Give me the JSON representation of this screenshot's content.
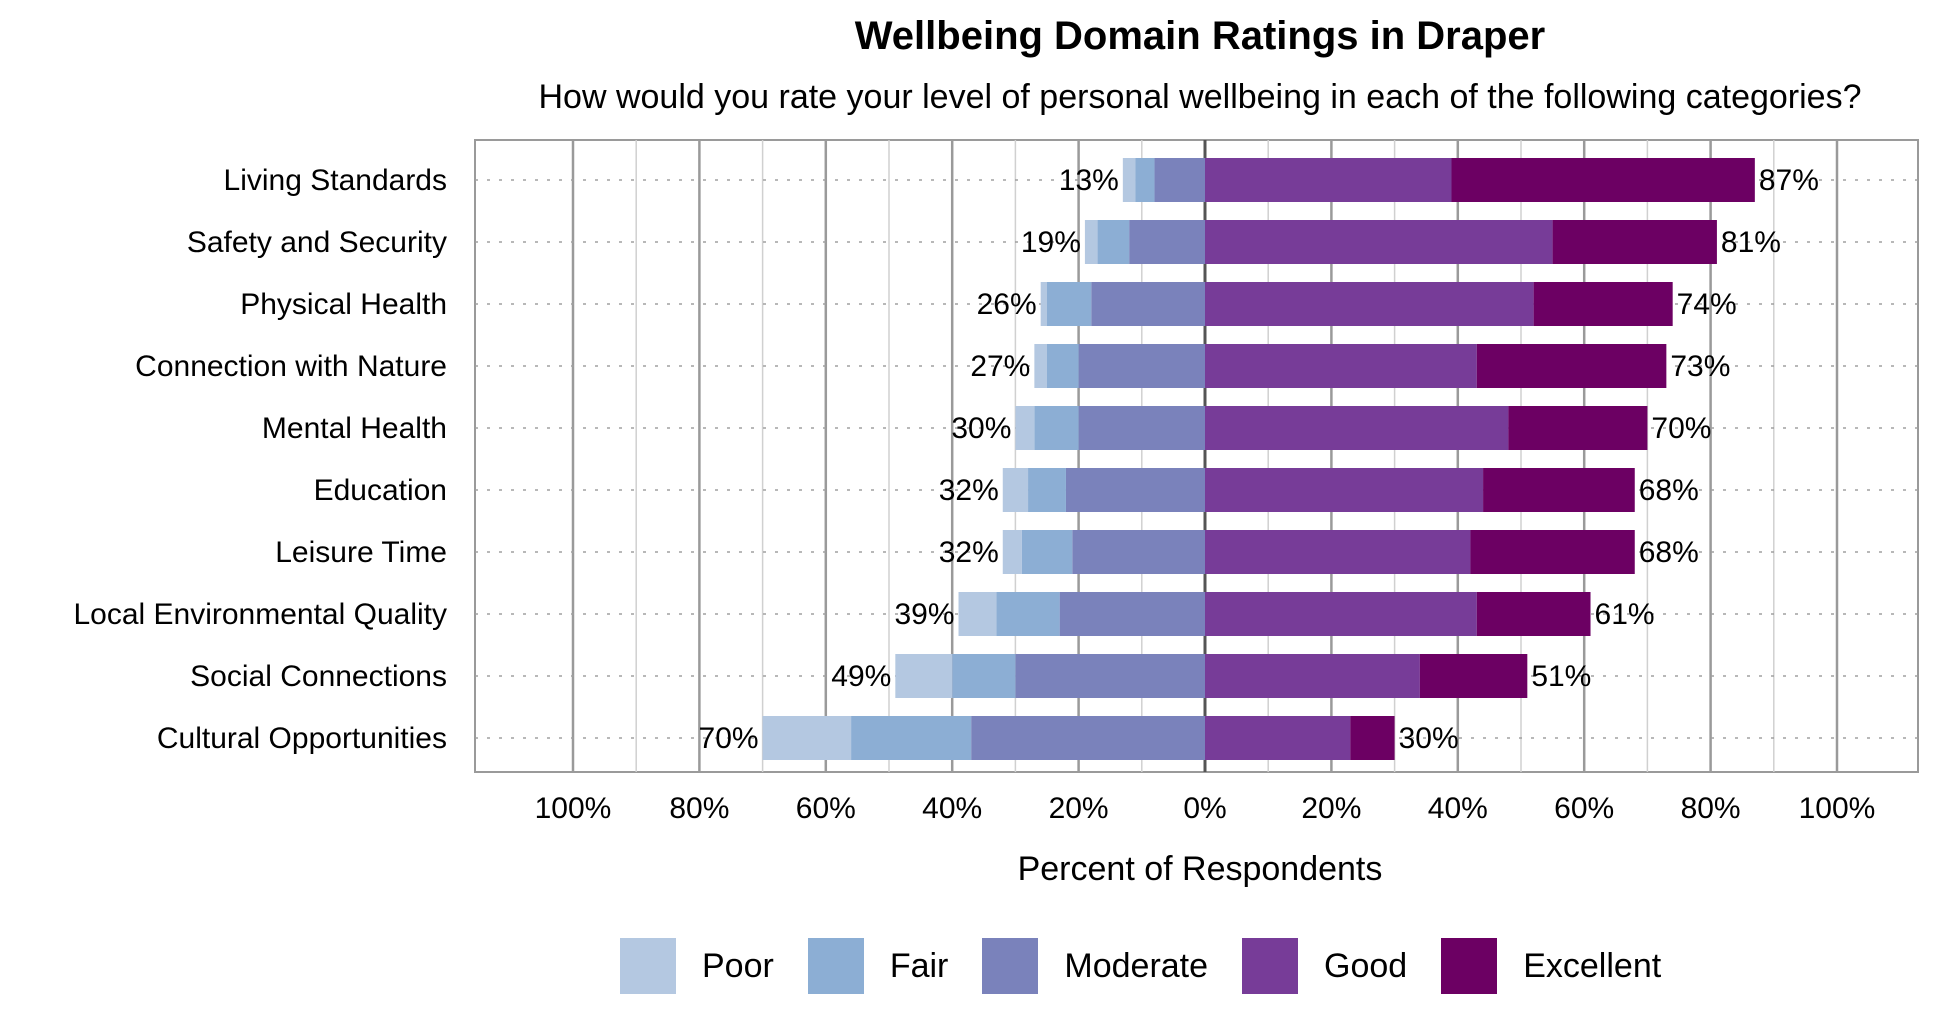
{
  "chart_data": {
    "type": "bar",
    "orientation": "horizontal",
    "stacked": "diverging",
    "title": "Wellbeing Domain Ratings in Draper",
    "subtitle": "How would you rate your level of personal wellbeing in each of the following categories?",
    "xlabel": "Percent of Respondents",
    "xlim": [
      -100,
      100
    ],
    "x_ticks": [
      -100,
      -80,
      -60,
      -40,
      -20,
      0,
      20,
      40,
      60,
      80,
      100
    ],
    "x_tick_labels": [
      "100%",
      "80%",
      "60%",
      "40%",
      "20%",
      "0%",
      "20%",
      "40%",
      "60%",
      "80%",
      "100%"
    ],
    "grid": true,
    "legend_position": "bottom",
    "categories": [
      "Living Standards",
      "Safety and Security",
      "Physical Health",
      "Connection with Nature",
      "Mental Health",
      "Education",
      "Leisure Time",
      "Local Environmental Quality",
      "Social Connections",
      "Cultural Opportunities"
    ],
    "series": [
      {
        "name": "Poor",
        "side": "negative",
        "color": "#b4c8e1",
        "values": [
          2,
          2,
          1,
          2,
          3,
          4,
          3,
          6,
          9,
          14
        ]
      },
      {
        "name": "Fair",
        "side": "negative",
        "color": "#8caed4",
        "values": [
          3,
          5,
          7,
          5,
          7,
          6,
          8,
          10,
          10,
          19
        ]
      },
      {
        "name": "Moderate",
        "side": "negative",
        "color": "#7a82bb",
        "values": [
          8,
          12,
          18,
          20,
          20,
          22,
          21,
          23,
          30,
          37
        ]
      },
      {
        "name": "Good",
        "side": "positive",
        "color": "#773c98",
        "values": [
          39,
          55,
          52,
          43,
          48,
          44,
          42,
          43,
          34,
          23
        ]
      },
      {
        "name": "Excellent",
        "side": "positive",
        "color": "#6c0063",
        "values": [
          48,
          26,
          22,
          30,
          22,
          24,
          26,
          18,
          17,
          7
        ]
      }
    ],
    "negative_totals": [
      "13%",
      "19%",
      "26%",
      "27%",
      "30%",
      "32%",
      "32%",
      "39%",
      "49%",
      "70%"
    ],
    "positive_totals": [
      "87%",
      "81%",
      "74%",
      "73%",
      "70%",
      "68%",
      "68%",
      "61%",
      "51%",
      "30%"
    ]
  }
}
